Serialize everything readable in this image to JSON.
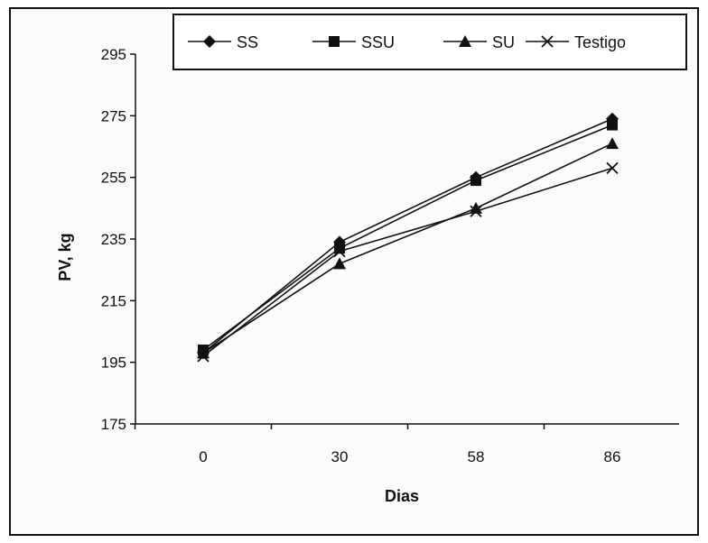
{
  "chart_data": {
    "type": "line",
    "title": "",
    "xlabel": "Dias",
    "ylabel": "PV, kg",
    "categories": [
      "0",
      "30",
      "58",
      "86"
    ],
    "ylim": [
      175,
      295
    ],
    "yticks": [
      175,
      195,
      215,
      235,
      255,
      275,
      295
    ],
    "grid": false,
    "legend_position": "top",
    "series": [
      {
        "name": "SS",
        "marker": "diamond",
        "values": [
          198,
          234,
          255,
          274
        ]
      },
      {
        "name": "SSU",
        "marker": "square",
        "values": [
          199,
          232,
          254,
          272
        ]
      },
      {
        "name": "SU",
        "marker": "triangle",
        "values": [
          198,
          227,
          245,
          266
        ]
      },
      {
        "name": "Testigo",
        "marker": "x",
        "values": [
          197,
          231,
          244,
          258
        ]
      }
    ]
  }
}
